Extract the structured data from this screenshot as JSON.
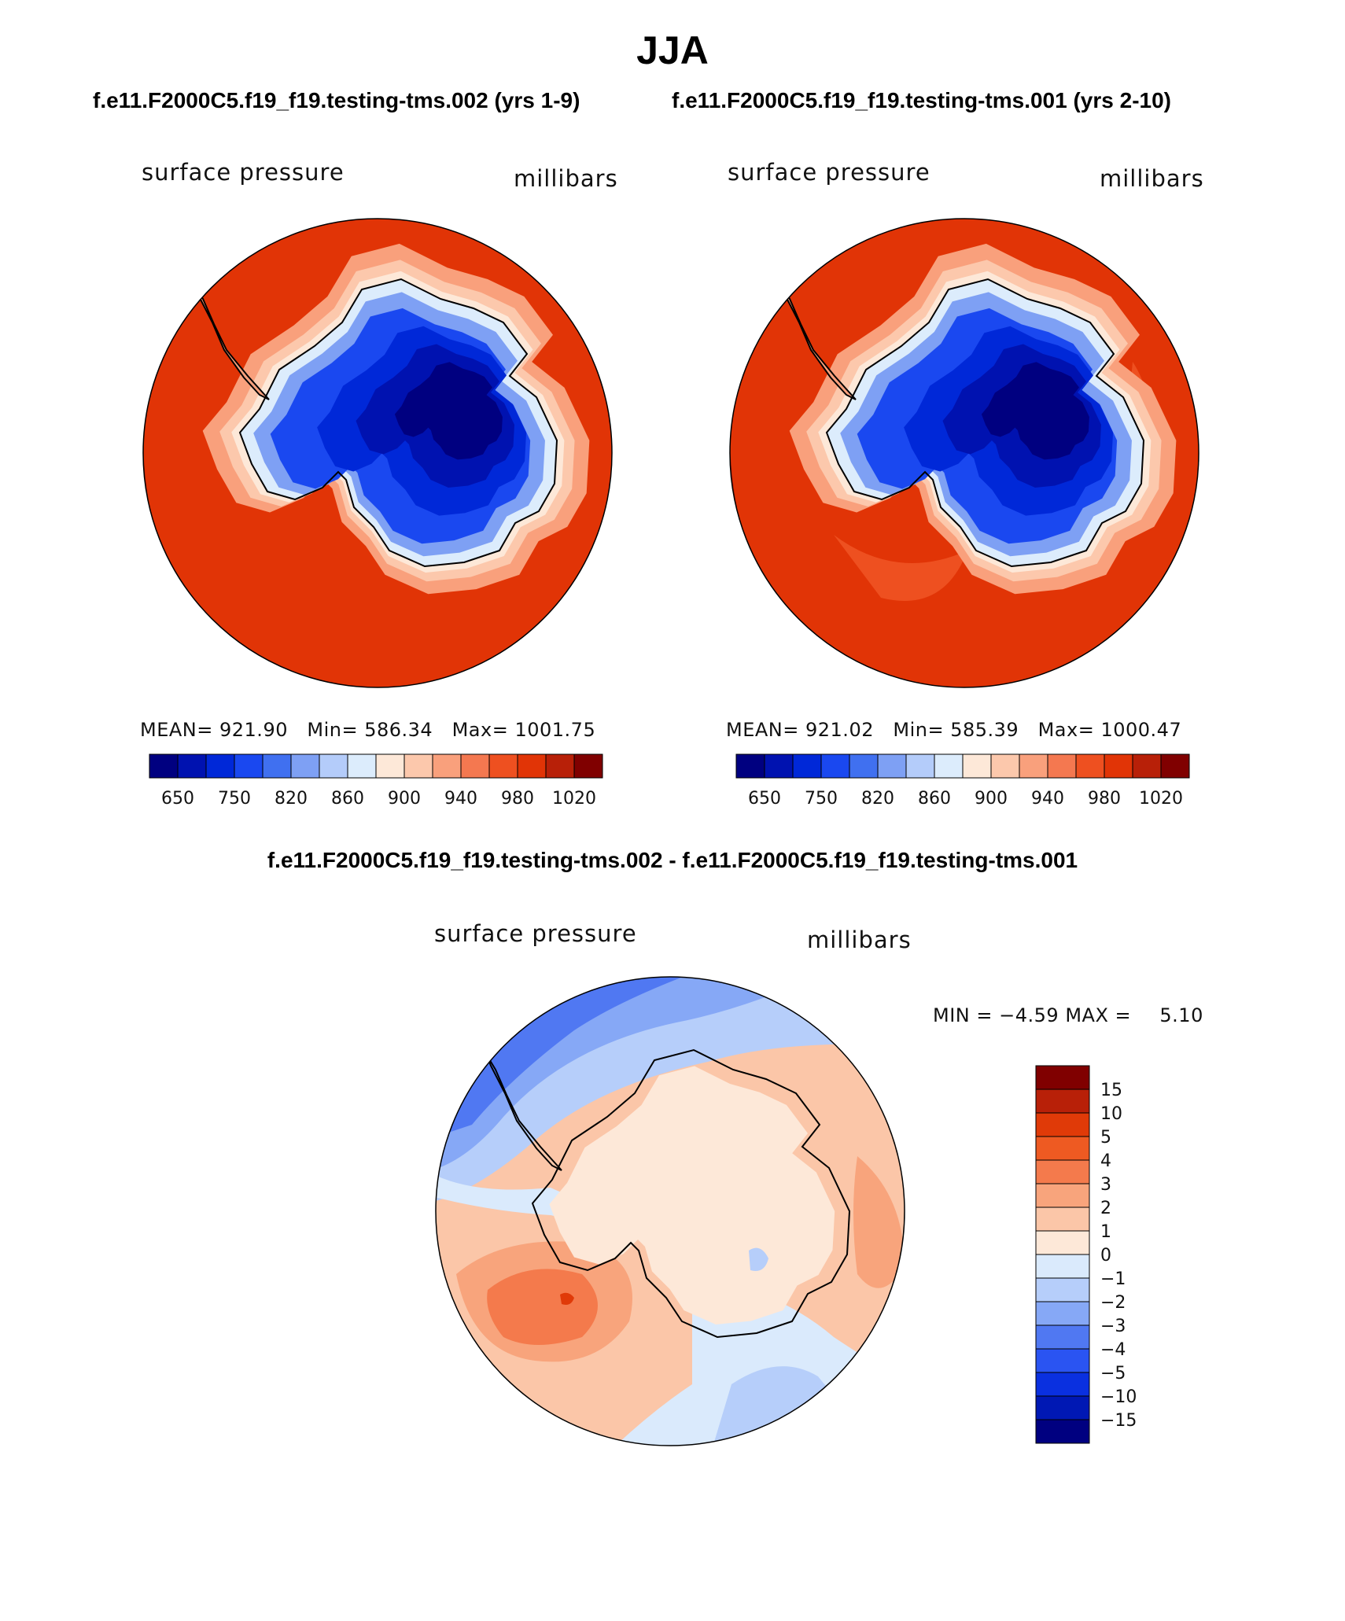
{
  "title": "JJA",
  "case1_title": "f.e11.F2000C5.f19_f19.testing-tms.002 (yrs 1-9)",
  "case2_title": "f.e11.F2000C5.f19_f19.testing-tms.001 (yrs 2-10)",
  "diff_title": "f.e11.F2000C5.f19_f19.testing-tms.002 - f.e11.F2000C5.f19_f19.testing-tms.001",
  "colors": {
    "ocean": "#e13406",
    "coast": "#000000",
    "abs_palette": [
      "#000080",
      "#0012b0",
      "#0028d8",
      "#1a48f0",
      "#4070f0",
      "#7ea0f4",
      "#b4ccfa",
      "#dcecfc",
      "#fde8d8",
      "#fcc8ac",
      "#f9a07c",
      "#f47850",
      "#ee5020",
      "#e13406",
      "#b82008",
      "#800000"
    ],
    "diff_palette": [
      "#000080",
      "#0018b4",
      "#0a30e0",
      "#2a54f2",
      "#5078f2",
      "#86a8f6",
      "#b6cefa",
      "#daeafc",
      "#fde8d8",
      "#fbc6a8",
      "#f8a47c",
      "#f47a4c",
      "#ee5a22",
      "#e03a08",
      "#b82008",
      "#800000"
    ]
  },
  "chart_data": [
    {
      "type": "heatmap",
      "name": "panel-case1",
      "projection": "south-polar-stereographic",
      "variable": "surface pressure",
      "units": "millibars",
      "stats": {
        "mean": "921.90",
        "min": "586.34",
        "max": "1001.75"
      },
      "stats_text": {
        "mean_label": "MEAN=",
        "min_label": "Min=",
        "max_label": "Max="
      },
      "colorbar_labels": [
        "650",
        "750",
        "820",
        "860",
        "900",
        "940",
        "980",
        "1020"
      ],
      "colorbar_orientation": "horizontal"
    },
    {
      "type": "heatmap",
      "name": "panel-case2",
      "projection": "south-polar-stereographic",
      "variable": "surface pressure",
      "units": "millibars",
      "stats": {
        "mean": "921.02",
        "min": "585.39",
        "max": "1000.47"
      },
      "stats_text": {
        "mean_label": "MEAN=",
        "min_label": "Min=",
        "max_label": "Max="
      },
      "colorbar_labels": [
        "650",
        "750",
        "820",
        "860",
        "900",
        "940",
        "980",
        "1020"
      ],
      "colorbar_orientation": "horizontal"
    },
    {
      "type": "heatmap",
      "name": "panel-difference",
      "projection": "south-polar-stereographic",
      "variable": "surface pressure",
      "units": "millibars",
      "min_label": "MIN =",
      "min": "−4.59",
      "max_label": "MAX =",
      "max": "5.10",
      "colorbar_labels": [
        "15",
        "10",
        "5",
        "4",
        "3",
        "2",
        "1",
        "0",
        "−1",
        "−2",
        "−3",
        "−4",
        "−5",
        "−10",
        "−15"
      ],
      "colorbar_orientation": "vertical"
    }
  ]
}
